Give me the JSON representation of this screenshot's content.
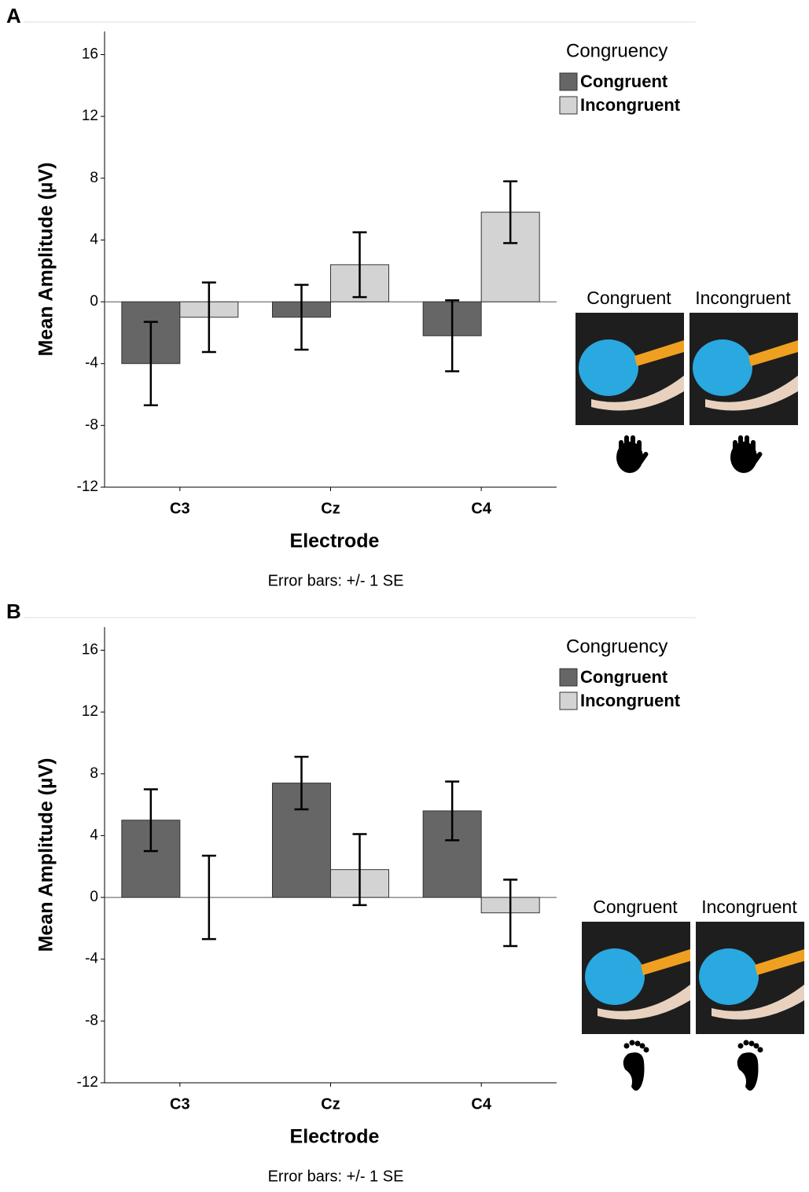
{
  "chart_data": [
    {
      "type": "bar",
      "panel_label": "A",
      "legend_title": "Congruency",
      "x_label": "Electrode",
      "y_label": "Mean Amplitude (µV)",
      "note": "Error bars: +/- 1 SE",
      "image_labels": [
        "Congruent",
        "Incongruent"
      ],
      "categories": [
        "C3",
        "Cz",
        "C4"
      ],
      "series": [
        {
          "name": "Congruent",
          "color": "#666666",
          "values": [
            -4.0,
            -1.0,
            -2.2
          ],
          "errors": [
            2.7,
            2.1,
            2.3
          ]
        },
        {
          "name": "Incongruent",
          "color": "#d3d3d3",
          "values": [
            -1.0,
            2.4,
            5.8
          ],
          "errors": [
            2.25,
            2.1,
            2.0
          ]
        }
      ],
      "ylim": [
        -12,
        17.5
      ],
      "yticks": [
        -12,
        -8,
        -4,
        0,
        4,
        8,
        12,
        16
      ]
    },
    {
      "type": "bar",
      "panel_label": "B",
      "legend_title": "Congruency",
      "x_label": "Electrode",
      "y_label": "Mean Amplitude (µV)",
      "note": "Error bars: +/- 1 SE",
      "image_labels": [
        "Congruent",
        "Incongruent"
      ],
      "categories": [
        "C3",
        "Cz",
        "C4"
      ],
      "series": [
        {
          "name": "Congruent",
          "color": "#666666",
          "values": [
            5.0,
            7.4,
            5.6
          ],
          "errors": [
            2.0,
            1.7,
            1.9
          ]
        },
        {
          "name": "Incongruent",
          "color": "#d3d3d3",
          "values": [
            0,
            1.8,
            -1.0
          ],
          "errors": [
            2.7,
            2.3,
            2.15
          ]
        }
      ],
      "ylim": [
        -12,
        17.5
      ],
      "yticks": [
        -12,
        -8,
        -4,
        0,
        4,
        8,
        12,
        16
      ]
    }
  ]
}
